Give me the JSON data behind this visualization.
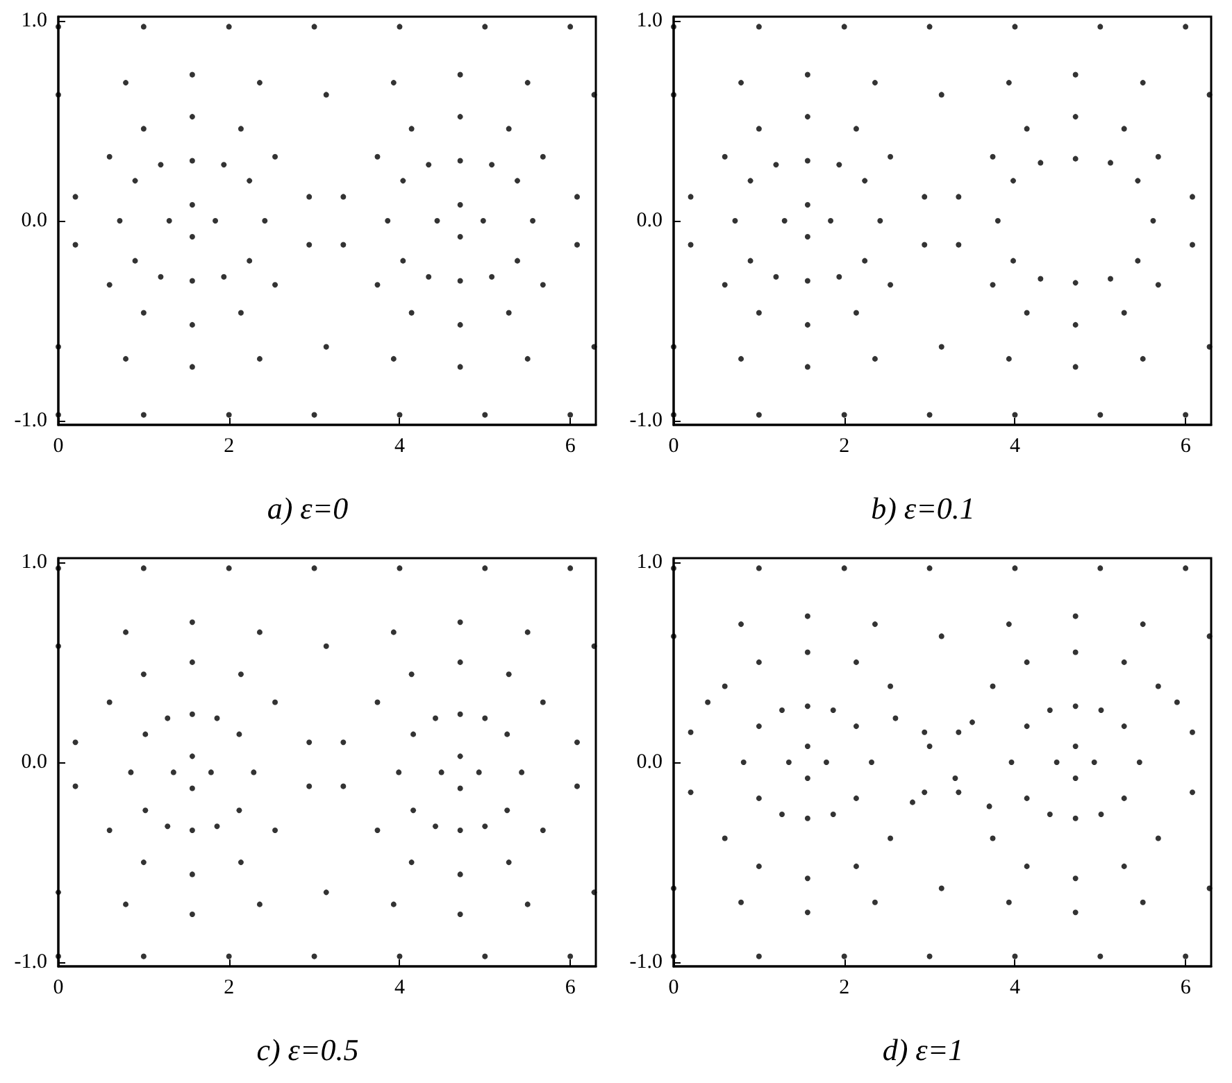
{
  "chart_data": [
    {
      "type": "scatter",
      "title": "a) ε=0",
      "color": "#000000",
      "marker": "circle",
      "grid": false,
      "xlim": [
        0,
        6.3
      ],
      "xticks": [
        0,
        2,
        4,
        6
      ],
      "ylim": [
        -1.02,
        1.02
      ],
      "yticks": [
        {
          "value": -1,
          "label": "-1.0"
        },
        {
          "value": 0,
          "label": "0.0"
        },
        {
          "value": 1,
          "label": "1.0"
        }
      ],
      "x": [
        0,
        1,
        2,
        3,
        4,
        5,
        6,
        0,
        1,
        2,
        3,
        4,
        5,
        6,
        0,
        0.79,
        1.57,
        2.36,
        3.14,
        3.93,
        4.71,
        5.5,
        6.28,
        0,
        0.79,
        1.57,
        2.36,
        3.14,
        3.93,
        4.71,
        5.5,
        6.28,
        0.2,
        0.6,
        1.0,
        1.57,
        2.14,
        2.54,
        2.94,
        0.2,
        0.6,
        1.0,
        1.57,
        2.14,
        2.54,
        2.94,
        3.34,
        3.74,
        4.14,
        4.71,
        5.28,
        5.68,
        6.08,
        3.34,
        3.74,
        4.14,
        4.71,
        5.28,
        5.68,
        6.08,
        0.72,
        0.9,
        1.2,
        1.57,
        1.94,
        2.24,
        2.42,
        2.24,
        1.94,
        1.57,
        1.2,
        0.9,
        3.86,
        4.04,
        4.34,
        4.71,
        5.08,
        5.38,
        5.56,
        5.38,
        5.08,
        4.71,
        4.34,
        4.04,
        1.3,
        1.57,
        1.84,
        1.57,
        4.44,
        4.71,
        4.98,
        4.71
      ],
      "values": [
        0.97,
        0.97,
        0.97,
        0.97,
        0.97,
        0.97,
        0.97,
        -0.97,
        -0.97,
        -0.97,
        -0.97,
        -0.97,
        -0.97,
        -0.97,
        0.63,
        0.69,
        0.73,
        0.69,
        0.63,
        0.69,
        0.73,
        0.69,
        0.63,
        -0.63,
        -0.69,
        -0.73,
        -0.69,
        -0.63,
        -0.69,
        -0.73,
        -0.69,
        -0.63,
        0.12,
        0.32,
        0.46,
        0.52,
        0.46,
        0.32,
        0.12,
        -0.12,
        -0.32,
        -0.46,
        -0.52,
        -0.46,
        -0.32,
        -0.12,
        0.12,
        0.32,
        0.46,
        0.52,
        0.46,
        0.32,
        0.12,
        -0.12,
        -0.32,
        -0.46,
        -0.52,
        -0.46,
        -0.32,
        -0.12,
        0,
        0.2,
        0.28,
        0.3,
        0.28,
        0.2,
        0,
        -0.2,
        -0.28,
        -0.3,
        -0.28,
        -0.2,
        0,
        0.2,
        0.28,
        0.3,
        0.28,
        0.2,
        0,
        -0.2,
        -0.28,
        -0.3,
        -0.28,
        -0.2,
        0,
        0.08,
        0,
        -0.08,
        0,
        0.08,
        0,
        -0.08
      ]
    },
    {
      "type": "scatter",
      "title": "b) ε=0.1",
      "color": "#000000",
      "marker": "circle",
      "grid": false,
      "xlim": [
        0,
        6.3
      ],
      "xticks": [
        0,
        2,
        4,
        6
      ],
      "ylim": [
        -1.02,
        1.02
      ],
      "yticks": [
        {
          "value": -1,
          "label": "-1.0"
        },
        {
          "value": 0,
          "label": "0.0"
        },
        {
          "value": 1,
          "label": "1.0"
        }
      ],
      "x": [
        0,
        1,
        2,
        3,
        4,
        5,
        6,
        0,
        1,
        2,
        3,
        4,
        5,
        6,
        0,
        0.79,
        1.57,
        2.36,
        3.14,
        3.93,
        4.71,
        5.5,
        6.28,
        0,
        0.79,
        1.57,
        2.36,
        3.14,
        3.93,
        4.71,
        5.5,
        6.28,
        0.2,
        0.6,
        1.0,
        1.57,
        2.14,
        2.54,
        2.94,
        0.2,
        0.6,
        1.0,
        1.57,
        2.14,
        2.54,
        2.94,
        3.34,
        3.74,
        4.14,
        4.71,
        5.28,
        5.68,
        6.08,
        3.34,
        3.74,
        4.14,
        4.71,
        5.28,
        5.68,
        6.08,
        0.72,
        0.9,
        1.2,
        1.57,
        1.94,
        2.24,
        2.42,
        2.24,
        1.94,
        1.57,
        1.2,
        0.9,
        3.8,
        3.98,
        4.3,
        4.71,
        5.12,
        5.44,
        5.62,
        5.44,
        5.12,
        4.71,
        4.3,
        3.98,
        1.3,
        1.57,
        1.84,
        1.57
      ],
      "values": [
        0.97,
        0.97,
        0.97,
        0.97,
        0.97,
        0.97,
        0.97,
        -0.97,
        -0.97,
        -0.97,
        -0.97,
        -0.97,
        -0.97,
        -0.97,
        0.63,
        0.69,
        0.73,
        0.69,
        0.63,
        0.69,
        0.73,
        0.69,
        0.63,
        -0.63,
        -0.69,
        -0.73,
        -0.69,
        -0.63,
        -0.69,
        -0.73,
        -0.69,
        -0.63,
        0.12,
        0.32,
        0.46,
        0.52,
        0.46,
        0.32,
        0.12,
        -0.12,
        -0.32,
        -0.46,
        -0.52,
        -0.46,
        -0.32,
        -0.12,
        0.12,
        0.32,
        0.46,
        0.52,
        0.46,
        0.32,
        0.12,
        -0.12,
        -0.32,
        -0.46,
        -0.52,
        -0.46,
        -0.32,
        -0.12,
        0,
        0.2,
        0.28,
        0.3,
        0.28,
        0.2,
        0,
        -0.2,
        -0.28,
        -0.3,
        -0.28,
        -0.2,
        0,
        0.2,
        0.29,
        0.31,
        0.29,
        0.2,
        0,
        -0.2,
        -0.29,
        -0.31,
        -0.29,
        -0.2,
        0,
        0.08,
        0,
        -0.08
      ]
    },
    {
      "type": "scatter",
      "title": "c) ε=0.5",
      "color": "#000000",
      "marker": "circle",
      "grid": false,
      "xlim": [
        0,
        6.3
      ],
      "xticks": [
        0,
        2,
        4,
        6
      ],
      "ylim": [
        -1.02,
        1.02
      ],
      "yticks": [
        {
          "value": -1,
          "label": "-1.0"
        },
        {
          "value": 0,
          "label": "0.0"
        },
        {
          "value": 1,
          "label": "1.0"
        }
      ],
      "x": [
        0,
        1,
        2,
        3,
        4,
        5,
        6,
        0,
        1,
        2,
        3,
        4,
        5,
        6,
        0,
        0.79,
        1.57,
        2.36,
        3.14,
        3.93,
        4.71,
        5.5,
        6.28,
        0,
        0.79,
        1.57,
        2.36,
        3.14,
        3.93,
        4.71,
        5.5,
        6.28,
        0.2,
        0.6,
        1.0,
        1.57,
        2.14,
        2.54,
        2.94,
        0.2,
        0.6,
        1.0,
        1.57,
        2.14,
        2.54,
        2.94,
        3.34,
        3.74,
        4.14,
        4.71,
        5.28,
        5.68,
        6.08,
        3.34,
        3.74,
        4.14,
        4.71,
        5.28,
        5.68,
        6.08,
        0.85,
        1.02,
        1.28,
        1.57,
        1.86,
        2.12,
        2.29,
        2.12,
        1.86,
        1.57,
        1.28,
        1.02,
        3.99,
        4.16,
        4.42,
        4.71,
        5.0,
        5.26,
        5.43,
        5.26,
        5.0,
        4.71,
        4.42,
        4.16,
        1.35,
        1.57,
        1.79,
        1.57,
        4.49,
        4.71,
        4.93,
        4.71
      ],
      "values": [
        0.97,
        0.97,
        0.97,
        0.97,
        0.97,
        0.97,
        0.97,
        -0.97,
        -0.97,
        -0.97,
        -0.97,
        -0.97,
        -0.97,
        -0.97,
        0.58,
        0.65,
        0.7,
        0.65,
        0.58,
        0.65,
        0.7,
        0.65,
        0.58,
        -0.65,
        -0.71,
        -0.76,
        -0.71,
        -0.65,
        -0.71,
        -0.76,
        -0.71,
        -0.65,
        0.1,
        0.3,
        0.44,
        0.5,
        0.44,
        0.3,
        0.1,
        -0.12,
        -0.34,
        -0.5,
        -0.56,
        -0.5,
        -0.34,
        -0.12,
        0.1,
        0.3,
        0.44,
        0.5,
        0.44,
        0.3,
        0.1,
        -0.12,
        -0.34,
        -0.5,
        -0.56,
        -0.5,
        -0.34,
        -0.12,
        -0.05,
        0.14,
        0.22,
        0.24,
        0.22,
        0.14,
        -0.05,
        -0.24,
        -0.32,
        -0.34,
        -0.32,
        -0.24,
        -0.05,
        0.14,
        0.22,
        0.24,
        0.22,
        0.14,
        -0.05,
        -0.24,
        -0.32,
        -0.34,
        -0.32,
        -0.24,
        -0.05,
        0.03,
        -0.05,
        -0.13,
        -0.05,
        0.03,
        -0.05,
        -0.13
      ]
    },
    {
      "type": "scatter",
      "title": "d) ε=1",
      "color": "#000000",
      "marker": "circle",
      "grid": false,
      "xlim": [
        0,
        6.3
      ],
      "xticks": [
        0,
        2,
        4,
        6
      ],
      "ylim": [
        -1.02,
        1.02
      ],
      "yticks": [
        {
          "value": -1,
          "label": "-1.0"
        },
        {
          "value": 0,
          "label": "0.0"
        },
        {
          "value": 1,
          "label": "1.0"
        }
      ],
      "x": [
        0,
        1,
        2,
        3,
        4,
        5,
        6,
        0,
        1,
        2,
        3,
        4,
        5,
        6,
        0,
        0.79,
        1.57,
        2.36,
        3.14,
        3.93,
        4.71,
        5.5,
        6.28,
        0,
        0.79,
        1.57,
        2.36,
        3.14,
        3.93,
        4.71,
        5.5,
        6.28,
        0.2,
        0.6,
        1.0,
        1.57,
        2.14,
        2.54,
        2.94,
        0.2,
        0.6,
        1.0,
        1.57,
        2.14,
        2.54,
        2.94,
        3.34,
        3.74,
        4.14,
        4.71,
        5.28,
        5.68,
        6.08,
        3.34,
        3.74,
        4.14,
        4.71,
        5.28,
        5.68,
        6.08,
        0.82,
        1.0,
        1.27,
        1.57,
        1.87,
        2.14,
        2.32,
        2.14,
        1.87,
        1.57,
        1.27,
        1.0,
        3.96,
        4.14,
        4.41,
        4.71,
        5.01,
        5.28,
        5.46,
        5.28,
        5.01,
        4.71,
        4.41,
        4.14,
        1.35,
        1.57,
        1.79,
        1.57,
        4.49,
        4.71,
        4.93,
        4.71,
        0.4,
        2.6,
        3.0,
        3.3,
        3.7,
        5.9,
        2.8,
        3.5
      ],
      "values": [
        0.97,
        0.97,
        0.97,
        0.97,
        0.97,
        0.97,
        0.97,
        -0.97,
        -0.97,
        -0.97,
        -0.97,
        -0.97,
        -0.97,
        -0.97,
        0.63,
        0.69,
        0.73,
        0.69,
        0.63,
        0.69,
        0.73,
        0.69,
        0.63,
        -0.63,
        -0.7,
        -0.75,
        -0.7,
        -0.63,
        -0.7,
        -0.75,
        -0.7,
        -0.63,
        0.15,
        0.38,
        0.5,
        0.55,
        0.5,
        0.38,
        0.15,
        -0.15,
        -0.38,
        -0.52,
        -0.58,
        -0.52,
        -0.38,
        -0.15,
        0.15,
        0.38,
        0.5,
        0.55,
        0.5,
        0.38,
        0.15,
        -0.15,
        -0.38,
        -0.52,
        -0.58,
        -0.52,
        -0.38,
        -0.15,
        0,
        0.18,
        0.26,
        0.28,
        0.26,
        0.18,
        0,
        -0.18,
        -0.26,
        -0.28,
        -0.26,
        -0.18,
        0,
        0.18,
        0.26,
        0.28,
        0.26,
        0.18,
        0,
        -0.18,
        -0.26,
        -0.28,
        -0.26,
        -0.18,
        0,
        0.08,
        0,
        -0.08,
        0,
        0.08,
        0,
        -0.08,
        0.3,
        0.22,
        0.08,
        -0.08,
        -0.22,
        0.3,
        -0.2,
        0.2
      ]
    }
  ]
}
